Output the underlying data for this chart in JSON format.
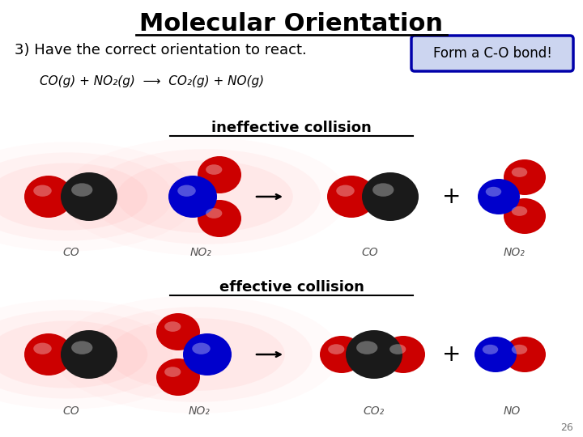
{
  "title": "Molecular Orientation",
  "subtitle": "3) Have the correct orientation to react.",
  "bond_box_text": "Form a C-O bond!",
  "equation_text": "CO(g) + NO₂(g)  ⟶  CO₂(g) + NO(g)",
  "ineffective_label": "ineffective collision",
  "effective_label": "effective collision",
  "labels_ineffective": [
    "CO",
    "NO₂",
    "CO",
    "NO₂"
  ],
  "labels_effective": [
    "CO",
    "NO₂",
    "CO₂",
    "NO"
  ],
  "background": "#ffffff",
  "dark_gray": "#1a1a1a",
  "red": "#cc0000",
  "blue": "#0000cc",
  "pink_glow": "#ffb0b0",
  "box_fill": "#ccd5f0",
  "box_edge": "#0000aa"
}
